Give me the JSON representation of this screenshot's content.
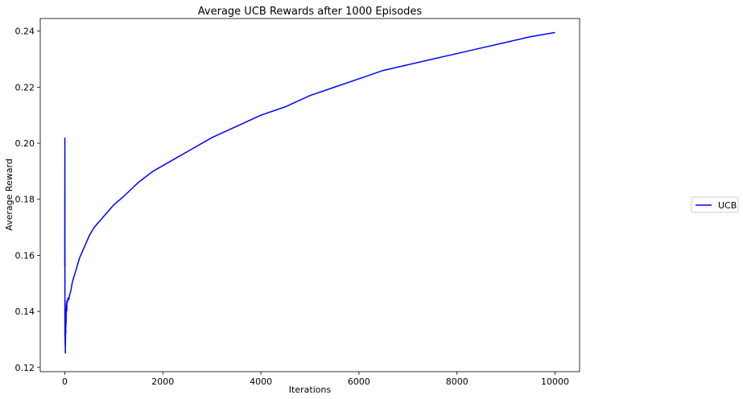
{
  "chart_data": {
    "type": "line",
    "title": "Average UCB Rewards after 1000 Episodes",
    "xlabel": "Iterations",
    "ylabel": "Average Reward",
    "xlim": [
      -500,
      10500
    ],
    "ylim": [
      0.1185,
      0.2445
    ],
    "xticks": [
      0,
      2000,
      4000,
      6000,
      8000,
      10000
    ],
    "yticks": [
      0.12,
      0.14,
      0.16,
      0.18,
      0.2,
      0.22,
      0.24
    ],
    "xtick_labels": [
      "0",
      "2000",
      "4000",
      "6000",
      "8000",
      "10000"
    ],
    "ytick_labels": [
      "0.12",
      "0.14",
      "0.16",
      "0.18",
      "0.20",
      "0.22",
      "0.24"
    ],
    "grid": false,
    "legend": {
      "placement": "outside-right",
      "entries": [
        "UCB"
      ]
    },
    "series": [
      {
        "name": "UCB",
        "color": "#0000ff",
        "x": [
          0,
          2,
          4,
          5,
          8,
          10,
          12,
          15,
          18,
          20,
          22,
          25,
          28,
          30,
          35,
          40,
          45,
          50,
          60,
          70,
          80,
          100,
          120,
          150,
          180,
          200,
          250,
          300,
          350,
          400,
          500,
          600,
          700,
          800,
          1000,
          1200,
          1500,
          1800,
          2000,
          2200,
          2500,
          3000,
          3500,
          4000,
          4500,
          5000,
          5500,
          6000,
          6500,
          7000,
          7500,
          8000,
          8500,
          9000,
          9500,
          10000
        ],
        "y": [
          0.156,
          0.202,
          0.131,
          0.135,
          0.128,
          0.134,
          0.125,
          0.131,
          0.136,
          0.132,
          0.141,
          0.135,
          0.138,
          0.141,
          0.143,
          0.14,
          0.144,
          0.143,
          0.144,
          0.145,
          0.144,
          0.146,
          0.147,
          0.15,
          0.152,
          0.153,
          0.156,
          0.159,
          0.161,
          0.163,
          0.167,
          0.17,
          0.172,
          0.174,
          0.178,
          0.181,
          0.186,
          0.19,
          0.192,
          0.194,
          0.197,
          0.202,
          0.206,
          0.21,
          0.213,
          0.217,
          0.22,
          0.223,
          0.226,
          0.228,
          0.23,
          0.232,
          0.234,
          0.236,
          0.238,
          0.2395
        ]
      }
    ]
  }
}
